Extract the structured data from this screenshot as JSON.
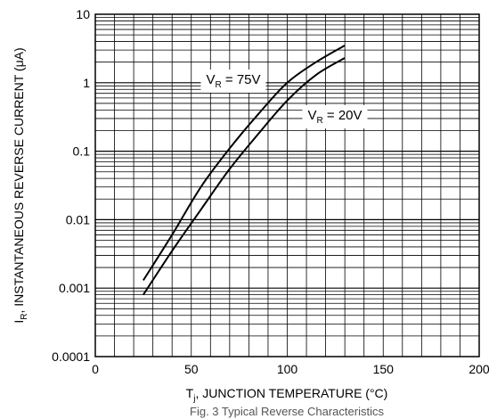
{
  "chart_data": {
    "type": "line",
    "x_scale": "linear",
    "y_scale": "log",
    "xlim": [
      0,
      200
    ],
    "ylim": [
      0.0001,
      10
    ],
    "x_ticks": [
      "0",
      "50",
      "100",
      "150",
      "200"
    ],
    "y_ticks": [
      "0.0001",
      "0.001",
      "0.01",
      "0.1",
      "1",
      "10"
    ],
    "xlabel": {
      "pre": "T",
      "sub": "j",
      "post": ", JUNCTION TEMPERATURE (°C)"
    },
    "ylabel": {
      "pre": "I",
      "sub": "R",
      "post": ", INSTANTANEOUS REVERSE CURRENT (μA)"
    },
    "caption": "Fig. 3 Typical Reverse Characteristics",
    "grid": true,
    "series": [
      {
        "name": {
          "pre": "V",
          "sub": "R",
          "post": " = 75V"
        },
        "color": "#000000",
        "x": [
          25,
          40,
          55,
          70,
          85,
          100,
          115,
          130
        ],
        "y": [
          0.0013,
          0.006,
          0.03,
          0.11,
          0.35,
          1.0,
          2.0,
          3.5
        ]
      },
      {
        "name": {
          "pre": "V",
          "sub": "R",
          "post": " = 20V"
        },
        "color": "#000000",
        "x": [
          25,
          40,
          55,
          70,
          85,
          100,
          115,
          130
        ],
        "y": [
          0.0008,
          0.0035,
          0.014,
          0.055,
          0.18,
          0.55,
          1.3,
          2.3
        ]
      }
    ]
  }
}
